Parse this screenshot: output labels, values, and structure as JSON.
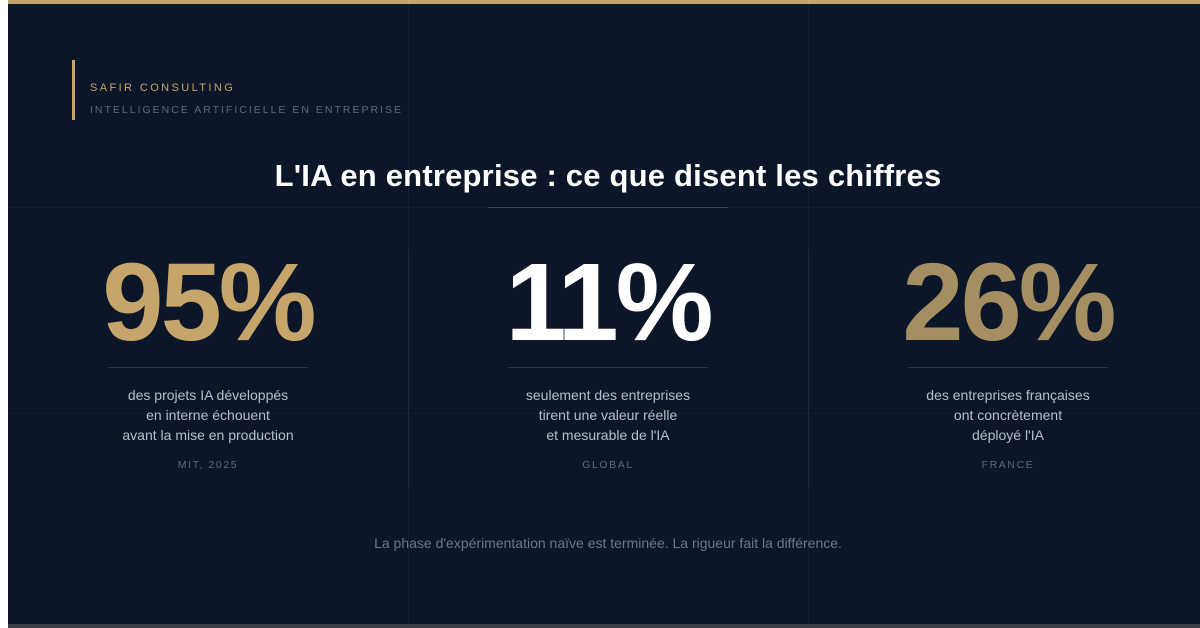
{
  "brand": {
    "name": "SAFIR CONSULTING",
    "subtitle": "INTELLIGENCE ARTIFICIELLE EN ENTREPRISE"
  },
  "title": "L'IA en entreprise : ce que disent les chiffres",
  "stats": [
    {
      "value": "95%",
      "desc": [
        "des projets IA développés",
        "en interne échouent",
        "avant la mise en production"
      ],
      "source": "MIT, 2025",
      "color": "#c5a56a"
    },
    {
      "value": "11%",
      "desc": [
        "seulement des entreprises",
        "tirent une valeur réelle",
        "et mesurable de l'IA"
      ],
      "source": "GLOBAL",
      "color": "#ffffff"
    },
    {
      "value": "26%",
      "desc": [
        "des entreprises françaises",
        "ont concrètement",
        "déployé l'IA"
      ],
      "source": "FRANCE",
      "color": "#a58f62"
    }
  ],
  "footer": "La phase d'expérimentation naïve est terminée. La rigueur fait la différence.",
  "colors": {
    "background": "#0b1628",
    "accent": "#c5a56a"
  }
}
